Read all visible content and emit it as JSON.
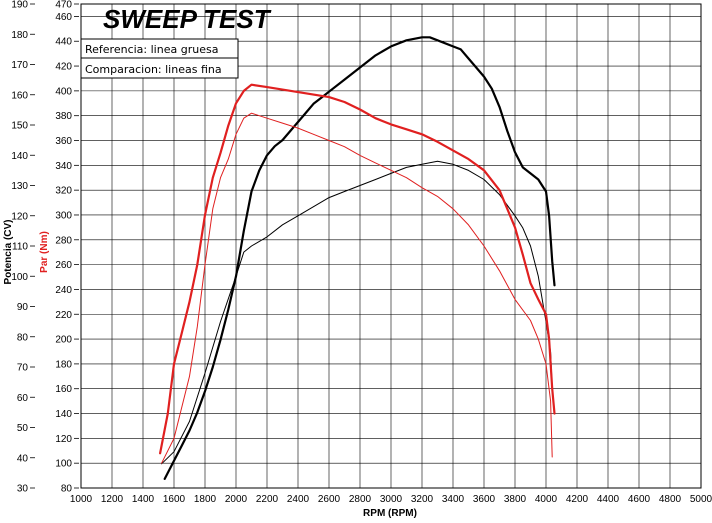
{
  "chart_data": {
    "type": "line",
    "title": "SWEEP TEST",
    "xlabel": "RPM (RPM)",
    "ylabel_left": "Potencia (CV)",
    "ylabel_right": "Par (Nm)",
    "xlim": [
      1000,
      5000
    ],
    "x_ticks": [
      1000,
      1200,
      1400,
      1600,
      1800,
      2000,
      2200,
      2400,
      2600,
      2800,
      3000,
      3200,
      3400,
      3600,
      3800,
      4000,
      4200,
      4400,
      4600,
      4800,
      5000
    ],
    "power_axis": {
      "ylim": [
        30,
        190
      ],
      "ticks": [
        30,
        40,
        50,
        60,
        70,
        80,
        90,
        100,
        110,
        120,
        130,
        140,
        150,
        160,
        170,
        180,
        190
      ]
    },
    "torque_axis": {
      "ylim": [
        80,
        470
      ],
      "ticks": [
        80,
        100,
        120,
        140,
        160,
        180,
        200,
        220,
        240,
        260,
        280,
        300,
        320,
        340,
        360,
        380,
        400,
        420,
        440,
        460,
        470
      ]
    },
    "grid": true,
    "legend": {
      "placement": "top-left",
      "entries": [
        "Referencia: linea gruesa",
        "Comparacion: lineas fina"
      ]
    },
    "colors": {
      "power": "#000000",
      "torque": "#e02020"
    },
    "series": [
      {
        "quantity": "power",
        "axis": "left",
        "style": "thick",
        "color": "#000000",
        "points": [
          [
            1540,
            33
          ],
          [
            1600,
            39
          ],
          [
            1650,
            44
          ],
          [
            1700,
            49
          ],
          [
            1750,
            55
          ],
          [
            1800,
            62
          ],
          [
            1850,
            70
          ],
          [
            1900,
            79
          ],
          [
            1950,
            89
          ],
          [
            2000,
            100
          ],
          [
            2050,
            115
          ],
          [
            2100,
            128
          ],
          [
            2150,
            135
          ],
          [
            2200,
            140
          ],
          [
            2250,
            143
          ],
          [
            2300,
            145
          ],
          [
            2350,
            148
          ],
          [
            2400,
            151
          ],
          [
            2450,
            154
          ],
          [
            2500,
            157
          ],
          [
            2550,
            159
          ],
          [
            2600,
            161
          ],
          [
            2700,
            165
          ],
          [
            2800,
            169
          ],
          [
            2900,
            173
          ],
          [
            3000,
            176
          ],
          [
            3100,
            178
          ],
          [
            3200,
            179
          ],
          [
            3250,
            179
          ],
          [
            3300,
            178
          ],
          [
            3400,
            176
          ],
          [
            3450,
            175
          ],
          [
            3500,
            172
          ],
          [
            3600,
            166
          ],
          [
            3650,
            162
          ],
          [
            3700,
            156
          ],
          [
            3750,
            148
          ],
          [
            3800,
            141
          ],
          [
            3850,
            136
          ],
          [
            3900,
            134
          ],
          [
            3950,
            132
          ],
          [
            4000,
            128
          ],
          [
            4020,
            120
          ],
          [
            4040,
            105
          ],
          [
            4055,
            97
          ]
        ]
      },
      {
        "quantity": "power",
        "axis": "left",
        "style": "thin",
        "color": "#000000",
        "points": [
          [
            1520,
            38
          ],
          [
            1600,
            42
          ],
          [
            1700,
            52
          ],
          [
            1800,
            68
          ],
          [
            1900,
            85
          ],
          [
            2000,
            100
          ],
          [
            2050,
            108
          ],
          [
            2100,
            110
          ],
          [
            2200,
            113
          ],
          [
            2300,
            117
          ],
          [
            2400,
            120
          ],
          [
            2500,
            123
          ],
          [
            2600,
            126
          ],
          [
            2700,
            128
          ],
          [
            2800,
            130
          ],
          [
            2900,
            132
          ],
          [
            3000,
            134
          ],
          [
            3100,
            136
          ],
          [
            3200,
            137
          ],
          [
            3300,
            138
          ],
          [
            3400,
            137
          ],
          [
            3500,
            135
          ],
          [
            3600,
            132
          ],
          [
            3700,
            127
          ],
          [
            3800,
            120
          ],
          [
            3850,
            116
          ],
          [
            3900,
            110
          ],
          [
            3950,
            100
          ],
          [
            4000,
            85
          ],
          [
            4030,
            75
          ],
          [
            4040,
            63
          ]
        ]
      },
      {
        "quantity": "torque",
        "axis": "right",
        "style": "thick",
        "color": "#e02020",
        "points": [
          [
            1510,
            108
          ],
          [
            1560,
            140
          ],
          [
            1600,
            180
          ],
          [
            1650,
            205
          ],
          [
            1700,
            230
          ],
          [
            1750,
            260
          ],
          [
            1800,
            300
          ],
          [
            1850,
            330
          ],
          [
            1900,
            350
          ],
          [
            1950,
            372
          ],
          [
            2000,
            390
          ],
          [
            2050,
            400
          ],
          [
            2100,
            405
          ],
          [
            2200,
            403
          ],
          [
            2300,
            401
          ],
          [
            2400,
            399
          ],
          [
            2500,
            397
          ],
          [
            2600,
            395
          ],
          [
            2700,
            391
          ],
          [
            2800,
            385
          ],
          [
            2900,
            378
          ],
          [
            3000,
            373
          ],
          [
            3100,
            369
          ],
          [
            3200,
            365
          ],
          [
            3300,
            359
          ],
          [
            3400,
            352
          ],
          [
            3500,
            345
          ],
          [
            3600,
            336
          ],
          [
            3700,
            320
          ],
          [
            3800,
            290
          ],
          [
            3850,
            268
          ],
          [
            3900,
            245
          ],
          [
            3950,
            232
          ],
          [
            4000,
            220
          ],
          [
            4020,
            200
          ],
          [
            4040,
            160
          ],
          [
            4055,
            140
          ]
        ]
      },
      {
        "quantity": "torque",
        "axis": "right",
        "style": "thin",
        "color": "#e02020",
        "points": [
          [
            1520,
            100
          ],
          [
            1600,
            120
          ],
          [
            1700,
            170
          ],
          [
            1750,
            210
          ],
          [
            1800,
            260
          ],
          [
            1850,
            305
          ],
          [
            1900,
            330
          ],
          [
            1950,
            345
          ],
          [
            2000,
            365
          ],
          [
            2050,
            378
          ],
          [
            2100,
            382
          ],
          [
            2200,
            378
          ],
          [
            2300,
            374
          ],
          [
            2400,
            370
          ],
          [
            2500,
            365
          ],
          [
            2600,
            360
          ],
          [
            2700,
            355
          ],
          [
            2800,
            348
          ],
          [
            2900,
            342
          ],
          [
            3000,
            336
          ],
          [
            3100,
            330
          ],
          [
            3200,
            322
          ],
          [
            3300,
            315
          ],
          [
            3400,
            305
          ],
          [
            3500,
            292
          ],
          [
            3600,
            275
          ],
          [
            3700,
            255
          ],
          [
            3800,
            232
          ],
          [
            3900,
            215
          ],
          [
            3950,
            200
          ],
          [
            4000,
            180
          ],
          [
            4030,
            150
          ],
          [
            4040,
            105
          ]
        ]
      }
    ]
  }
}
